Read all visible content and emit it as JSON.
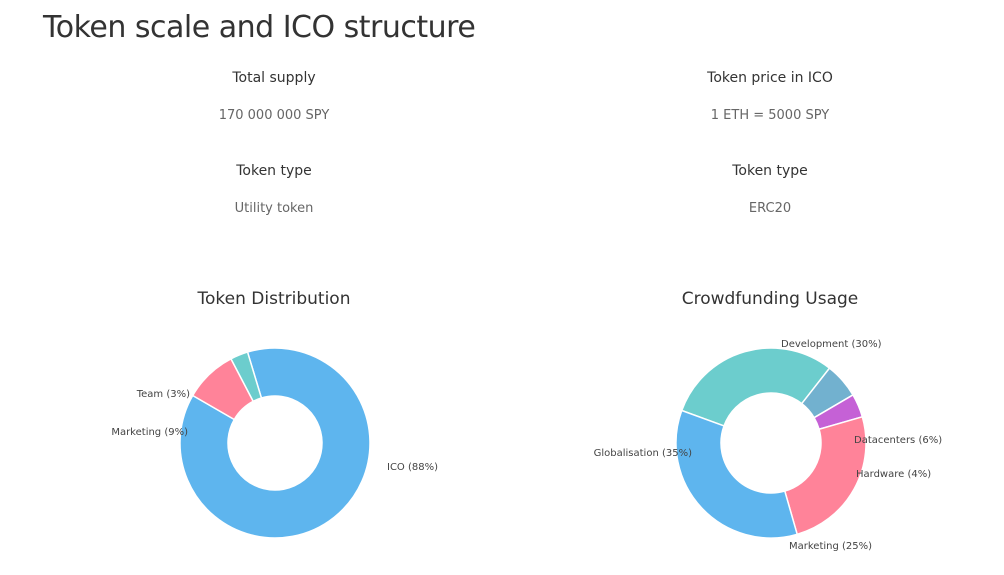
{
  "page": {
    "title": "Token scale and ICO structure"
  },
  "info": {
    "total_supply": {
      "label": "Total supply",
      "value": "170 000 000 SPY"
    },
    "token_price": {
      "label": "Token price in ICO",
      "value": "1 ETH = 5000 SPY"
    },
    "token_type_left": {
      "label": "Token type",
      "value": "Utility token"
    },
    "token_type_right": {
      "label": "Token type",
      "value": "ERC20"
    }
  },
  "chart_data": [
    {
      "type": "pie",
      "title": "Token Distribution",
      "donut": true,
      "slices": [
        {
          "label": "ICO (88%)",
          "value": 88,
          "color": "#5eb5ee"
        },
        {
          "label": "Marketing (9%)",
          "value": 9,
          "color": "#ff8399"
        },
        {
          "label": "Team (3%)",
          "value": 3,
          "color": "#6ccdcd"
        }
      ]
    },
    {
      "type": "pie",
      "title": "Crowdfunding Usage",
      "donut": true,
      "slices": [
        {
          "label": "Development (30%)",
          "value": 30,
          "color": "#6ccdcd"
        },
        {
          "label": "Datacenters (6%)",
          "value": 6,
          "color": "#72b1cf"
        },
        {
          "label": "Hardware (4%)",
          "value": 4,
          "color": "#c561d6"
        },
        {
          "label": "Marketing (25%)",
          "value": 25,
          "color": "#ff8399"
        },
        {
          "label": "Globalisation (35%)",
          "value": 35,
          "color": "#5eb5ee"
        }
      ]
    }
  ]
}
